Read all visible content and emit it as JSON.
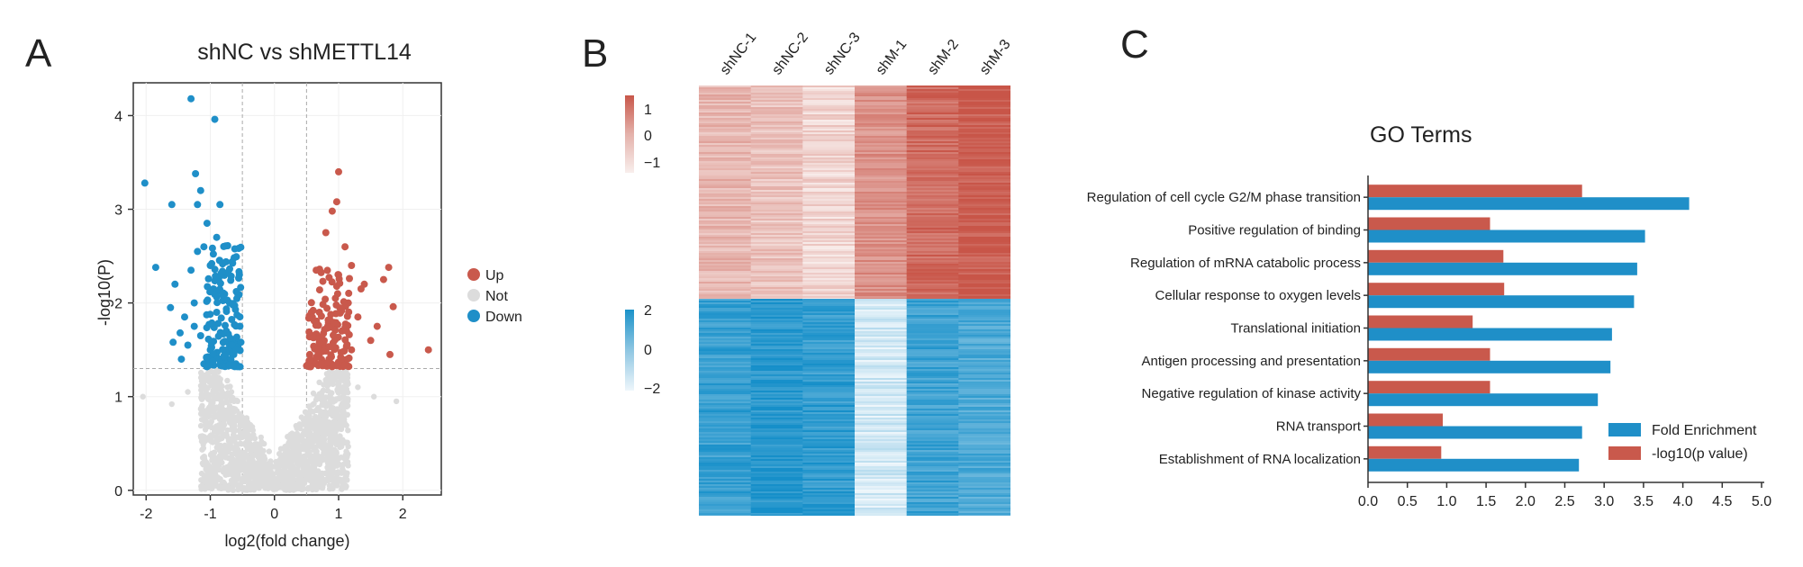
{
  "colors": {
    "up": "#c9594c",
    "down": "#1f8fc8",
    "not": "#dcdcdc",
    "fold": "#1f8fc8",
    "pval": "#c9594c",
    "heat_red": "#c8574a",
    "heat_blue": "#1b92c9"
  },
  "panels": {
    "a": "A",
    "b": "B",
    "c": "C"
  },
  "chart_data": [
    {
      "type": "scatter",
      "panel": "A",
      "title": "shNC vs shMETTL14",
      "xlabel": "log2(fold change)",
      "ylabel": "-log10(P)",
      "xlim": [
        -2.2,
        2.6
      ],
      "ylim": [
        -0.05,
        4.35
      ],
      "xticks": [
        -2,
        -1,
        0,
        1,
        2
      ],
      "yticks": [
        0,
        1,
        2,
        3,
        4
      ],
      "thresholds": {
        "x": [
          -0.5,
          0.5
        ],
        "y": 1.3
      },
      "legend": [
        {
          "key": "up",
          "label": "Up"
        },
        {
          "key": "not",
          "label": "Not"
        },
        {
          "key": "down",
          "label": "Down"
        }
      ],
      "down_points": [
        [
          -1.3,
          4.18
        ],
        [
          -0.93,
          3.96
        ],
        [
          -2.02,
          3.28
        ],
        [
          -1.23,
          3.38
        ],
        [
          -1.6,
          3.05
        ],
        [
          -1.15,
          3.2
        ],
        [
          -1.2,
          3.05
        ],
        [
          -0.85,
          3.05
        ],
        [
          -1.85,
          2.38
        ],
        [
          -1.55,
          2.2
        ],
        [
          -1.62,
          1.95
        ],
        [
          -1.47,
          1.68
        ],
        [
          -1.58,
          1.58
        ],
        [
          -1.05,
          2.85
        ],
        [
          -1.1,
          2.6
        ],
        [
          -1.0,
          2.4
        ],
        [
          -0.95,
          2.15
        ],
        [
          -1.2,
          2.55
        ],
        [
          -1.3,
          2.35
        ],
        [
          -1.4,
          1.85
        ],
        [
          -1.25,
          1.75
        ],
        [
          -1.35,
          1.55
        ],
        [
          -1.15,
          1.65
        ],
        [
          -0.9,
          1.9
        ],
        [
          -0.8,
          2.1
        ],
        [
          -0.75,
          1.7
        ],
        [
          -0.7,
          1.55
        ],
        [
          -0.65,
          1.45
        ],
        [
          -0.6,
          1.35
        ],
        [
          -0.85,
          1.4
        ],
        [
          -1.0,
          1.5
        ],
        [
          -1.1,
          1.35
        ],
        [
          -0.55,
          1.32
        ],
        [
          -0.9,
          2.7
        ],
        [
          -1.25,
          2.0
        ],
        [
          -1.45,
          1.4
        ],
        [
          -0.7,
          2.0
        ]
      ],
      "up_points": [
        [
          1.0,
          3.4
        ],
        [
          0.97,
          3.08
        ],
        [
          0.9,
          2.98
        ],
        [
          0.65,
          2.35
        ],
        [
          1.4,
          2.2
        ],
        [
          1.35,
          2.15
        ],
        [
          1.78,
          2.38
        ],
        [
          1.7,
          2.25
        ],
        [
          1.85,
          1.96
        ],
        [
          1.5,
          1.6
        ],
        [
          1.8,
          1.45
        ],
        [
          2.4,
          1.5
        ],
        [
          0.8,
          2.75
        ],
        [
          1.1,
          2.6
        ],
        [
          1.2,
          2.4
        ],
        [
          1.0,
          2.3
        ],
        [
          0.95,
          2.05
        ],
        [
          1.15,
          2.0
        ],
        [
          1.3,
          1.85
        ],
        [
          0.7,
          1.9
        ],
        [
          0.6,
          1.65
        ],
        [
          0.55,
          1.45
        ],
        [
          0.75,
          1.55
        ],
        [
          0.85,
          1.4
        ],
        [
          1.05,
          1.7
        ],
        [
          1.2,
          1.5
        ],
        [
          0.65,
          1.35
        ],
        [
          0.9,
          1.32
        ],
        [
          1.6,
          1.75
        ],
        [
          0.5,
          1.33
        ]
      ],
      "not_count": 1600
    },
    {
      "type": "heatmap",
      "panel": "B",
      "columns": [
        "shNC-1",
        "shNC-2",
        "shNC-3",
        "shM-1",
        "shM-2",
        "shM-3"
      ],
      "colorbars": [
        {
          "ticks": [
            "1",
            "0",
            "−1"
          ],
          "range": [
            -1,
            1
          ]
        },
        {
          "ticks": [
            "2",
            "0",
            "−2"
          ],
          "range": [
            -2,
            2
          ]
        }
      ],
      "upper_column_means": [
        -0.3,
        -0.45,
        -0.7,
        0.2,
        0.7,
        0.9
      ],
      "lower_column_means": [
        1.35,
        1.7,
        1.45,
        -1.5,
        1.25,
        0.95
      ]
    },
    {
      "type": "bar",
      "panel": "C",
      "title": "GO Terms",
      "orientation": "horizontal",
      "categories": [
        "Regulation of cell cycle G2/M phase transition",
        "Positive regulation of binding",
        "Regulation of mRNA catabolic process",
        "Cellular response to oxygen levels",
        "Translational initiation",
        "Antigen processing and presentation",
        "Negative regulation of kinase activity",
        "RNA transport",
        "Establishment of RNA localization"
      ],
      "series": [
        {
          "name": "Fold Enrichment",
          "values": [
            4.08,
            3.52,
            3.42,
            3.38,
            3.1,
            3.08,
            2.92,
            2.72,
            2.68
          ]
        },
        {
          "name": "-log10(p value)",
          "values": [
            2.72,
            1.55,
            1.72,
            1.73,
            1.33,
            1.55,
            1.55,
            0.95,
            0.93
          ]
        }
      ],
      "xlim": [
        0,
        5.0
      ],
      "xticks": [
        "0.0",
        "0.5",
        "1.0",
        "1.5",
        "2.0",
        "2.5",
        "3.0",
        "3.5",
        "4.0",
        "4.5",
        "5.0"
      ],
      "legend": [
        "Fold Enrichment",
        "-log10(p value)"
      ]
    }
  ]
}
